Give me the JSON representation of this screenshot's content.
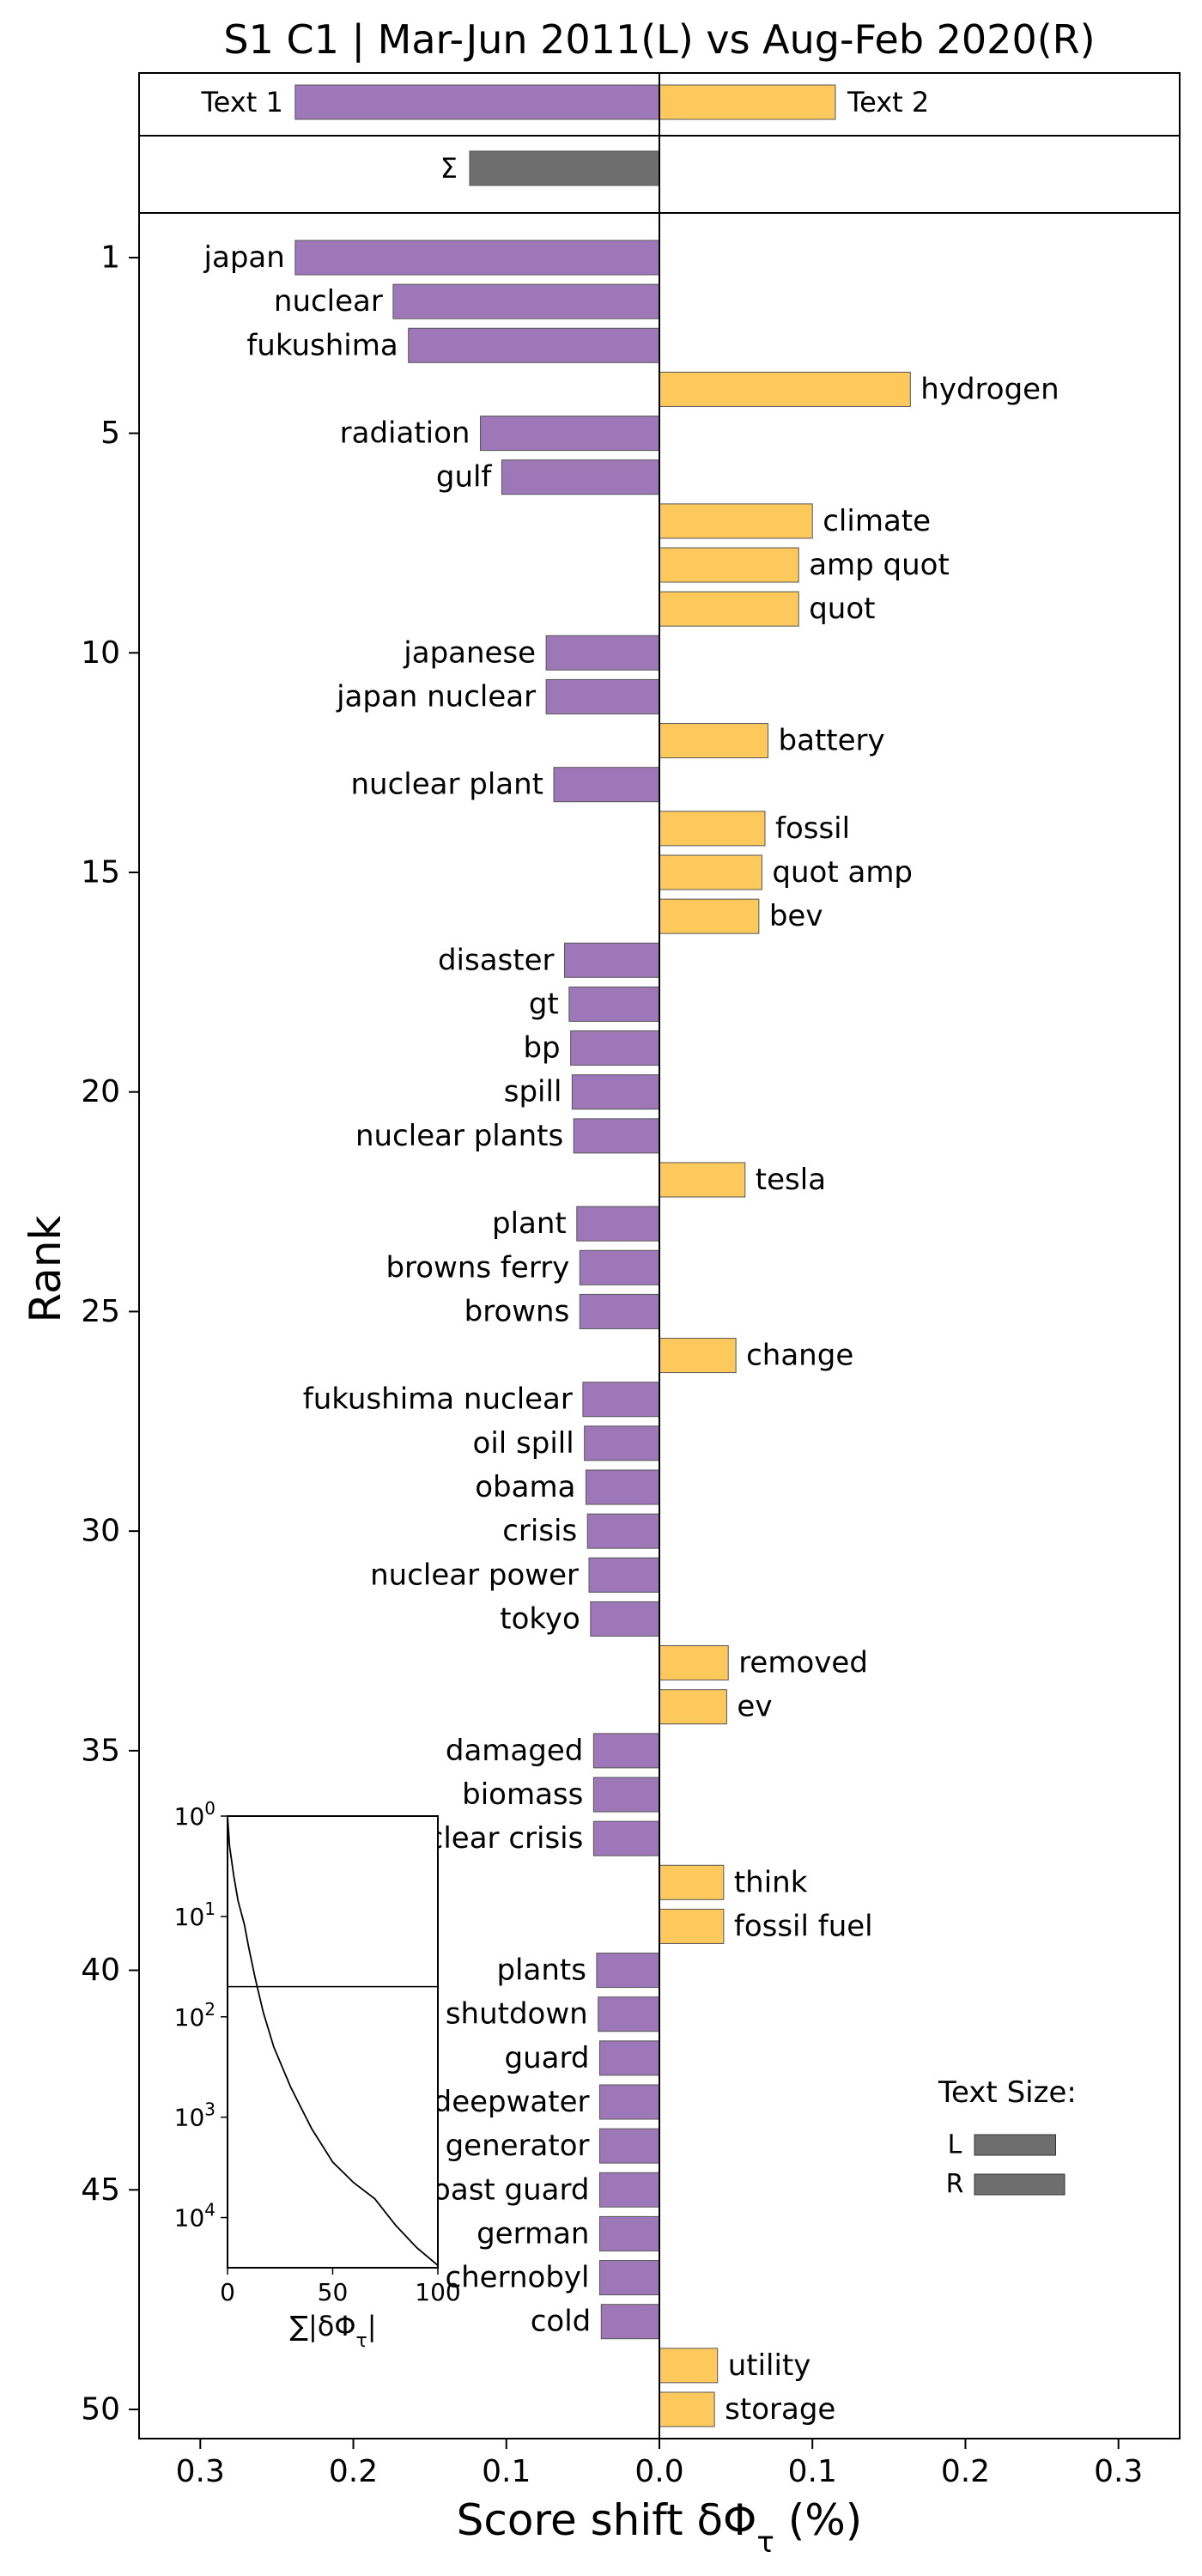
{
  "chart_data": {
    "type": "bar",
    "orientation": "horizontal",
    "title": "S1 C1 | Mar-Jun 2011(L) vs Aug-Feb 2020(R)",
    "xlabel": "Score shift δΦτ (%)",
    "ylabel": "Rank",
    "xlim": [
      -0.34,
      0.34
    ],
    "xticks": [
      -0.3,
      -0.2,
      -0.1,
      0.0,
      0.1,
      0.2,
      0.3
    ],
    "xtick_labels": [
      "0.3",
      "0.2",
      "0.1",
      "0.0",
      "0.1",
      "0.2",
      "0.3"
    ],
    "yticks": [
      1,
      5,
      10,
      15,
      20,
      25,
      30,
      35,
      40,
      45,
      50
    ],
    "colors": {
      "left": "#9e77b8",
      "right": "#fdc95c",
      "sigma": "#6e6e6e"
    },
    "top_panel": {
      "text1_label": "Text 1",
      "text2_label": "Text 2",
      "text1_value": -0.238,
      "text2_value": 0.115,
      "sigma_label": "Σ",
      "sigma_value": -0.124
    },
    "words": [
      "japan",
      "nuclear",
      "fukushima",
      "hydrogen",
      "radiation",
      "gulf",
      "climate",
      "amp quot",
      "quot",
      "japanese",
      "japan nuclear",
      "battery",
      "nuclear plant",
      "fossil",
      "quot amp",
      "bev",
      "disaster",
      "gt",
      "bp",
      "spill",
      "nuclear plants",
      "tesla",
      "plant",
      "browns ferry",
      "browns",
      "change",
      "fukushima nuclear",
      "oil spill",
      "obama",
      "crisis",
      "nuclear power",
      "tokyo",
      "removed",
      "ev",
      "damaged",
      "biomass",
      "nuclear crisis",
      "think",
      "fossil fuel",
      "plants",
      "shutdown",
      "guard",
      "deepwater",
      "diesel generator",
      "coast guard",
      "german",
      "chernobyl",
      "cold",
      "utility",
      "storage"
    ],
    "values": [
      -0.238,
      -0.174,
      -0.164,
      0.164,
      -0.117,
      -0.103,
      0.1,
      0.091,
      0.091,
      -0.074,
      -0.074,
      0.071,
      -0.069,
      0.069,
      0.067,
      0.065,
      -0.062,
      -0.059,
      -0.058,
      -0.057,
      -0.056,
      0.056,
      -0.054,
      -0.052,
      -0.052,
      0.05,
      -0.05,
      -0.049,
      -0.048,
      -0.047,
      -0.046,
      -0.045,
      0.045,
      0.044,
      -0.043,
      -0.043,
      -0.043,
      0.042,
      0.042,
      -0.041,
      -0.04,
      -0.039,
      -0.039,
      -0.039,
      -0.039,
      -0.039,
      -0.039,
      -0.038,
      0.038,
      0.036
    ],
    "inset": {
      "xlabel": "∑|δΦτ|",
      "xlim": [
        0,
        100
      ],
      "xticks": [
        0,
        50,
        100
      ],
      "ylog_ticks": [
        "10^0",
        "10^1",
        "10^2",
        "10^3",
        "10^4"
      ],
      "yscale": "log",
      "hline_at_rank": 50,
      "curve": [
        [
          0,
          1
        ],
        [
          1,
          2
        ],
        [
          3,
          4
        ],
        [
          5,
          7
        ],
        [
          8,
          12
        ],
        [
          10,
          20
        ],
        [
          13,
          40
        ],
        [
          17,
          90
        ],
        [
          22,
          200
        ],
        [
          30,
          500
        ],
        [
          40,
          1300
        ],
        [
          50,
          2800
        ],
        [
          60,
          4500
        ],
        [
          70,
          6500
        ],
        [
          80,
          12000
        ],
        [
          90,
          20000
        ],
        [
          100,
          30000
        ]
      ]
    },
    "legend": {
      "title": "Text Size:",
      "entries": [
        {
          "label": "L",
          "ratio": 0.9
        },
        {
          "label": "R",
          "ratio": 1.0
        }
      ],
      "placement": "lower-right"
    }
  }
}
